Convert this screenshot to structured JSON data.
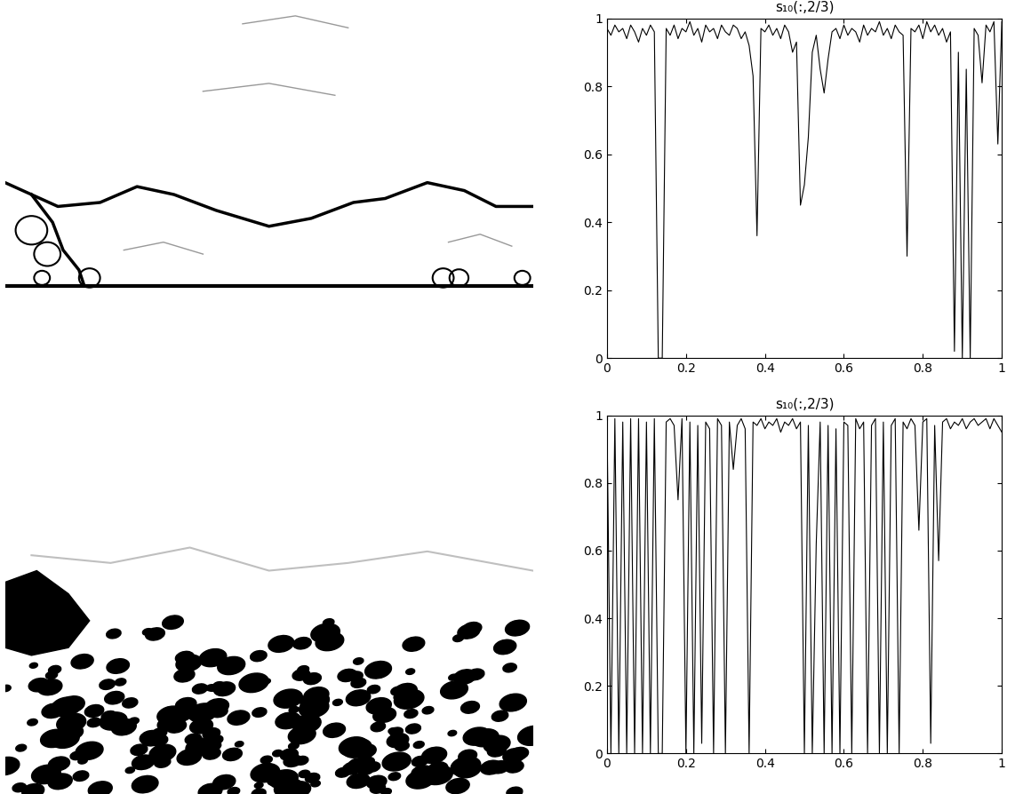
{
  "chart_data": [
    {
      "type": "line",
      "title": "s₁₀(:,2/3)",
      "color": "#000000",
      "x": [
        0,
        0.01,
        0.02,
        0.03,
        0.04,
        0.05,
        0.06,
        0.07,
        0.08,
        0.09,
        0.1,
        0.11,
        0.12,
        0.13,
        0.14,
        0.15,
        0.16,
        0.17,
        0.18,
        0.19,
        0.2,
        0.21,
        0.22,
        0.23,
        0.24,
        0.25,
        0.26,
        0.27,
        0.28,
        0.29,
        0.3,
        0.31,
        0.32,
        0.33,
        0.34,
        0.35,
        0.36,
        0.37,
        0.38,
        0.39,
        0.4,
        0.41,
        0.42,
        0.43,
        0.44,
        0.45,
        0.46,
        0.47,
        0.48,
        0.49,
        0.5,
        0.51,
        0.52,
        0.53,
        0.54,
        0.55,
        0.56,
        0.57,
        0.58,
        0.59,
        0.6,
        0.61,
        0.62,
        0.63,
        0.64,
        0.65,
        0.66,
        0.67,
        0.68,
        0.69,
        0.7,
        0.71,
        0.72,
        0.73,
        0.74,
        0.75,
        0.76,
        0.77,
        0.78,
        0.79,
        0.8,
        0.81,
        0.82,
        0.83,
        0.84,
        0.85,
        0.86,
        0.87,
        0.88,
        0.89,
        0.9,
        0.91,
        0.92,
        0.93,
        0.94,
        0.95,
        0.96,
        0.97,
        0.98,
        0.99,
        1
      ],
      "values": [
        0.97,
        0.95,
        0.98,
        0.96,
        0.97,
        0.94,
        0.98,
        0.96,
        0.93,
        0.97,
        0.95,
        0.98,
        0.96,
        0.0,
        0.0,
        0.97,
        0.95,
        0.98,
        0.94,
        0.97,
        0.96,
        0.99,
        0.95,
        0.97,
        0.93,
        0.98,
        0.96,
        0.97,
        0.94,
        0.98,
        0.96,
        0.95,
        0.98,
        0.97,
        0.94,
        0.96,
        0.92,
        0.83,
        0.36,
        0.97,
        0.96,
        0.98,
        0.95,
        0.97,
        0.94,
        0.98,
        0.96,
        0.9,
        0.93,
        0.45,
        0.51,
        0.65,
        0.9,
        0.95,
        0.85,
        0.78,
        0.88,
        0.96,
        0.97,
        0.94,
        0.98,
        0.95,
        0.97,
        0.96,
        0.93,
        0.98,
        0.95,
        0.97,
        0.96,
        0.99,
        0.95,
        0.97,
        0.94,
        0.98,
        0.96,
        0.95,
        0.3,
        0.97,
        0.96,
        0.98,
        0.94,
        0.99,
        0.96,
        0.98,
        0.95,
        0.97,
        0.93,
        0.96,
        0.02,
        0.9,
        0.0,
        0.85,
        0.0,
        0.97,
        0.95,
        0.81,
        0.98,
        0.96,
        0.99,
        0.63,
        0.99
      ],
      "xlim": [
        0,
        1
      ],
      "ylim": [
        0,
        1
      ],
      "xticks": [
        0,
        0.2,
        0.4,
        0.6,
        0.8,
        1
      ],
      "yticks": [
        0,
        0.2,
        0.4,
        0.6,
        0.8,
        1
      ]
    },
    {
      "type": "line",
      "title": "s₁₀(:,2/3)",
      "color": "#000000",
      "x": [
        0,
        0.01,
        0.02,
        0.03,
        0.04,
        0.05,
        0.06,
        0.07,
        0.08,
        0.09,
        0.1,
        0.11,
        0.12,
        0.13,
        0.14,
        0.15,
        0.16,
        0.17,
        0.18,
        0.19,
        0.2,
        0.21,
        0.22,
        0.23,
        0.24,
        0.25,
        0.26,
        0.27,
        0.28,
        0.29,
        0.3,
        0.31,
        0.32,
        0.33,
        0.34,
        0.35,
        0.36,
        0.37,
        0.38,
        0.39,
        0.4,
        0.41,
        0.42,
        0.43,
        0.44,
        0.45,
        0.46,
        0.47,
        0.48,
        0.49,
        0.5,
        0.51,
        0.52,
        0.53,
        0.54,
        0.55,
        0.56,
        0.57,
        0.58,
        0.59,
        0.6,
        0.61,
        0.62,
        0.63,
        0.64,
        0.65,
        0.66,
        0.67,
        0.68,
        0.69,
        0.7,
        0.71,
        0.72,
        0.73,
        0.74,
        0.75,
        0.76,
        0.77,
        0.78,
        0.79,
        0.8,
        0.81,
        0.82,
        0.83,
        0.84,
        0.85,
        0.86,
        0.87,
        0.88,
        0.89,
        0.9,
        0.91,
        0.92,
        0.93,
        0.94,
        0.95,
        0.96,
        0.97,
        0.98,
        0.99,
        1
      ],
      "values": [
        0.99,
        0.0,
        0.99,
        0.0,
        0.98,
        0.0,
        0.99,
        0.0,
        0.99,
        0.0,
        0.98,
        0.0,
        0.99,
        0.0,
        0.0,
        0.98,
        0.99,
        0.97,
        0.75,
        0.99,
        0.0,
        0.98,
        0.0,
        0.97,
        0.03,
        0.98,
        0.96,
        0.0,
        0.99,
        0.97,
        0.0,
        0.98,
        0.84,
        0.97,
        0.99,
        0.96,
        0.0,
        0.98,
        0.97,
        0.99,
        0.96,
        0.98,
        0.97,
        0.99,
        0.95,
        0.98,
        0.97,
        0.99,
        0.96,
        0.98,
        0.0,
        0.97,
        0.0,
        0.62,
        0.98,
        0.0,
        0.97,
        0.0,
        0.96,
        0.0,
        0.98,
        0.97,
        0.0,
        0.99,
        0.96,
        0.98,
        0.0,
        0.97,
        0.99,
        0.0,
        0.98,
        0.0,
        0.97,
        0.99,
        0.0,
        0.98,
        0.96,
        0.99,
        0.97,
        0.66,
        0.98,
        0.99,
        0.03,
        0.97,
        0.57,
        0.98,
        0.99,
        0.96,
        0.98,
        0.97,
        0.99,
        0.96,
        0.98,
        0.99,
        0.97,
        0.98,
        0.99,
        0.96,
        0.99,
        0.97,
        0.95
      ],
      "xlim": [
        0,
        1
      ],
      "ylim": [
        0,
        1
      ],
      "xticks": [
        0,
        0.2,
        0.4,
        0.6,
        0.8,
        1
      ],
      "yticks": [
        0,
        0.2,
        0.4,
        0.6,
        0.8,
        1
      ]
    }
  ]
}
